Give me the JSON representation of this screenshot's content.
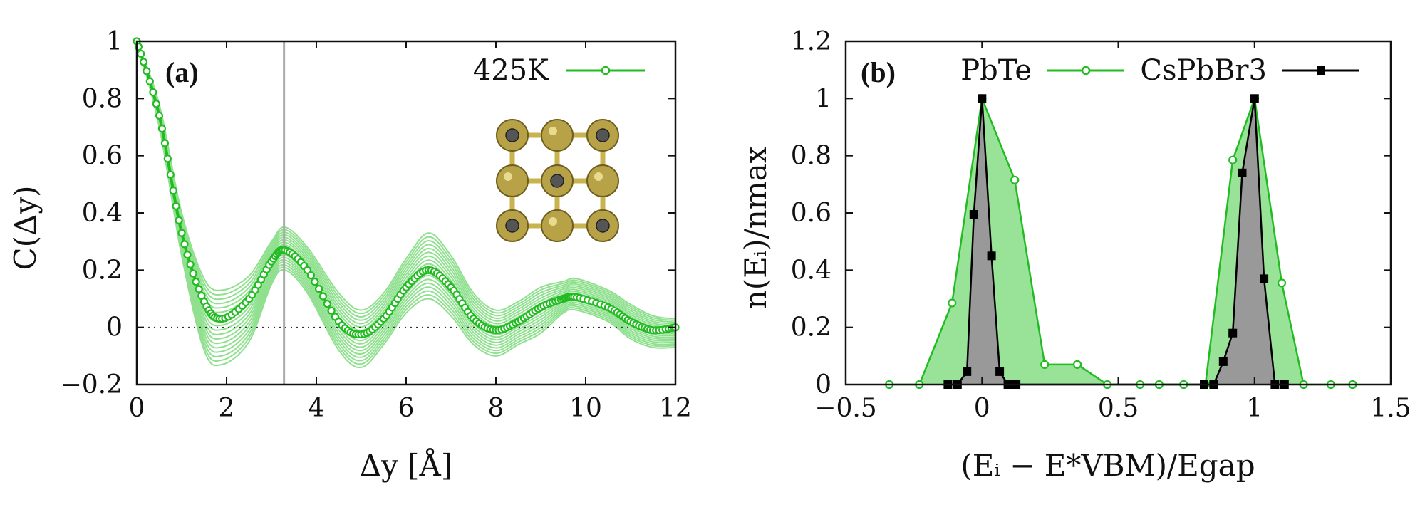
{
  "chart_data": [
    {
      "type": "line",
      "panel_label": "(a)",
      "xlabel": "Δy [Å]",
      "ylabel": "C(Δy)",
      "xlim": [
        0,
        12
      ],
      "ylim": [
        -0.2,
        1
      ],
      "x_ticks": [
        "0",
        "2",
        "4",
        "6",
        "8",
        "10",
        "12"
      ],
      "y_ticks": [
        "−0.2",
        "0",
        "0.2",
        "0.4",
        "0.6",
        "0.8",
        "1"
      ],
      "vertical_line_x": 3.28,
      "zero_line": true,
      "legend": [
        "425K"
      ],
      "series": [
        {
          "name": "425K",
          "color": "#22bb22",
          "x": [
            0,
            0.5,
            1,
            1.5,
            1.9,
            2.5,
            3.0,
            3.3,
            3.8,
            4.5,
            5.0,
            5.5,
            6.0,
            6.5,
            7.0,
            7.5,
            8.0,
            8.5,
            9.0,
            9.5,
            9.8,
            10.5,
            11.0,
            11.5,
            12.0
          ],
          "y": [
            1,
            0.74,
            0.33,
            0.09,
            0.03,
            0.1,
            0.23,
            0.27,
            0.2,
            0.02,
            -0.025,
            0.03,
            0.14,
            0.2,
            0.14,
            0.03,
            -0.01,
            0.02,
            0.07,
            0.1,
            0.105,
            0.07,
            0.02,
            -0.01,
            0.0
          ]
        }
      ],
      "ensemble_band": {
        "color": "#90e090",
        "min_y": [
          1,
          0.7,
          0.25,
          -0.08,
          -0.13,
          -0.05,
          0.15,
          0.2,
          0.12,
          -0.08,
          -0.14,
          -0.06,
          0.05,
          0.1,
          0.04,
          -0.06,
          -0.1,
          -0.06,
          -0.02,
          0.05,
          0.06,
          0.02,
          -0.04,
          -0.07,
          -0.07
        ],
        "max_y": [
          1,
          0.78,
          0.4,
          0.17,
          0.13,
          0.18,
          0.3,
          0.35,
          0.28,
          0.12,
          0.06,
          0.12,
          0.24,
          0.33,
          0.25,
          0.12,
          0.06,
          0.09,
          0.14,
          0.16,
          0.17,
          0.13,
          0.08,
          0.04,
          0.03
        ]
      }
    },
    {
      "type": "area",
      "panel_label": "(b)",
      "xlabel": "(Eᵢ − E*VBM)/Egap",
      "ylabel": "n(Eᵢ)/nmax",
      "xlim": [
        -0.5,
        1.5
      ],
      "ylim": [
        0,
        1.2
      ],
      "x_ticks": [
        "−0.5",
        "0",
        "0.5",
        "1",
        "1.5"
      ],
      "y_ticks": [
        "0",
        "0.2",
        "0.4",
        "0.6",
        "0.8",
        "1",
        "1.2"
      ],
      "legend": [
        "PbTe",
        "CsPbBr3"
      ],
      "series": [
        {
          "name": "PbTe",
          "color": "#22bb22",
          "fill": "#99e399",
          "marker": "open-circle",
          "x": [
            -0.34,
            -0.23,
            -0.11,
            0.0,
            0.12,
            0.23,
            0.35,
            0.46,
            0.58,
            0.65,
            0.74,
            0.82,
            0.92,
            1.0,
            1.1,
            1.18,
            1.28,
            1.36
          ],
          "y": [
            0,
            0,
            0.285,
            1.0,
            0.715,
            0.07,
            0.07,
            0,
            0,
            0,
            0,
            0,
            0.785,
            1.0,
            0.355,
            0,
            0,
            0
          ]
        },
        {
          "name": "CsPbBr3",
          "color": "#000000",
          "fill": "#999999",
          "marker": "filled-square",
          "x": [
            -0.125,
            -0.09,
            -0.055,
            -0.03,
            0.0,
            0.035,
            0.065,
            0.095,
            0.125,
            0.815,
            0.85,
            0.885,
            0.92,
            0.955,
            1.0,
            1.035,
            1.075,
            1.11
          ],
          "y": [
            0,
            0,
            0.045,
            0.595,
            1.0,
            0.45,
            0.045,
            0,
            0,
            0,
            0,
            0.08,
            0.18,
            0.74,
            1.0,
            0.37,
            0,
            0
          ]
        }
      ]
    }
  ]
}
